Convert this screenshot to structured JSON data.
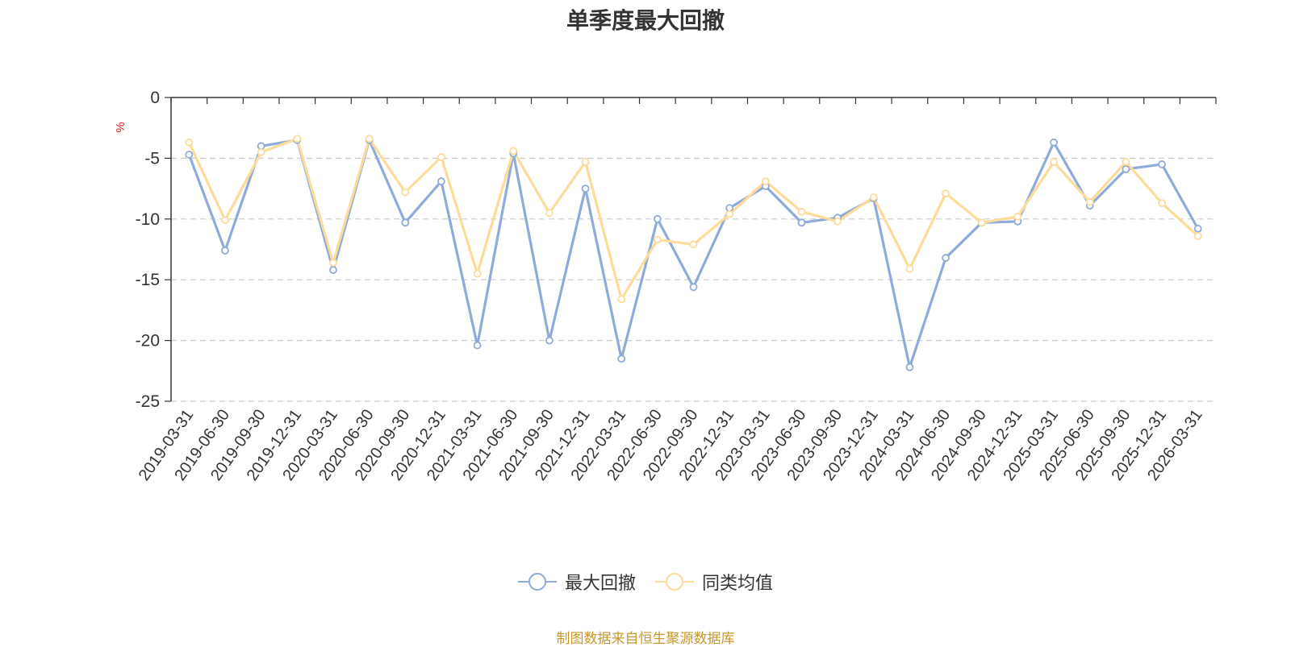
{
  "chart_data": {
    "type": "line",
    "title": "单季度最大回撤",
    "ylabel": "%",
    "xlabel": "",
    "ylim": [
      -25,
      0
    ],
    "yticks": [
      0,
      -5,
      -10,
      -15,
      -20,
      -25
    ],
    "grid": true,
    "legend_position": "bottom-center",
    "categories": [
      "2019-03-31",
      "2019-06-30",
      "2019-09-30",
      "2019-12-31",
      "2020-03-31",
      "2020-06-30",
      "2020-09-30",
      "2020-12-31",
      "2021-03-31",
      "2021-06-30",
      "2021-09-30",
      "2021-12-31",
      "2022-03-31",
      "2022-06-30",
      "2022-09-30",
      "2022-12-31",
      "2023-03-31",
      "2023-06-30",
      "2023-09-30",
      "2023-12-31",
      "2024-03-31",
      "2024-06-30",
      "2024-09-30",
      "2024-12-31",
      "2025-03-31",
      "2025-06-30",
      "2025-09-30",
      "2025-12-31",
      "2026-03-31"
    ],
    "series": [
      {
        "name": "最大回撤",
        "color": "#8eabd9",
        "values": [
          -4.7,
          -12.6,
          -4.0,
          -3.5,
          -14.2,
          -3.5,
          -10.3,
          -6.9,
          -20.4,
          -4.6,
          -20.0,
          -7.5,
          -21.5,
          -10.0,
          -15.6,
          -9.1,
          -7.3,
          -10.3,
          -9.9,
          -8.3,
          -22.2,
          -13.2,
          -10.3,
          -10.2,
          -3.7,
          -8.9,
          -5.9,
          -5.5,
          -10.8
        ]
      },
      {
        "name": "同类均值",
        "color": "#fddc9a",
        "values": [
          -3.7,
          -10.1,
          -4.5,
          -3.4,
          -13.6,
          -3.4,
          -7.8,
          -4.9,
          -14.5,
          -4.4,
          -9.5,
          -5.3,
          -16.6,
          -11.7,
          -12.1,
          -9.6,
          -6.9,
          -9.4,
          -10.2,
          -8.2,
          -14.1,
          -7.9,
          -10.3,
          -9.8,
          -5.3,
          -8.6,
          -5.3,
          -8.7,
          -11.4
        ]
      }
    ],
    "source": "制图数据来自恒生聚源数据库"
  }
}
